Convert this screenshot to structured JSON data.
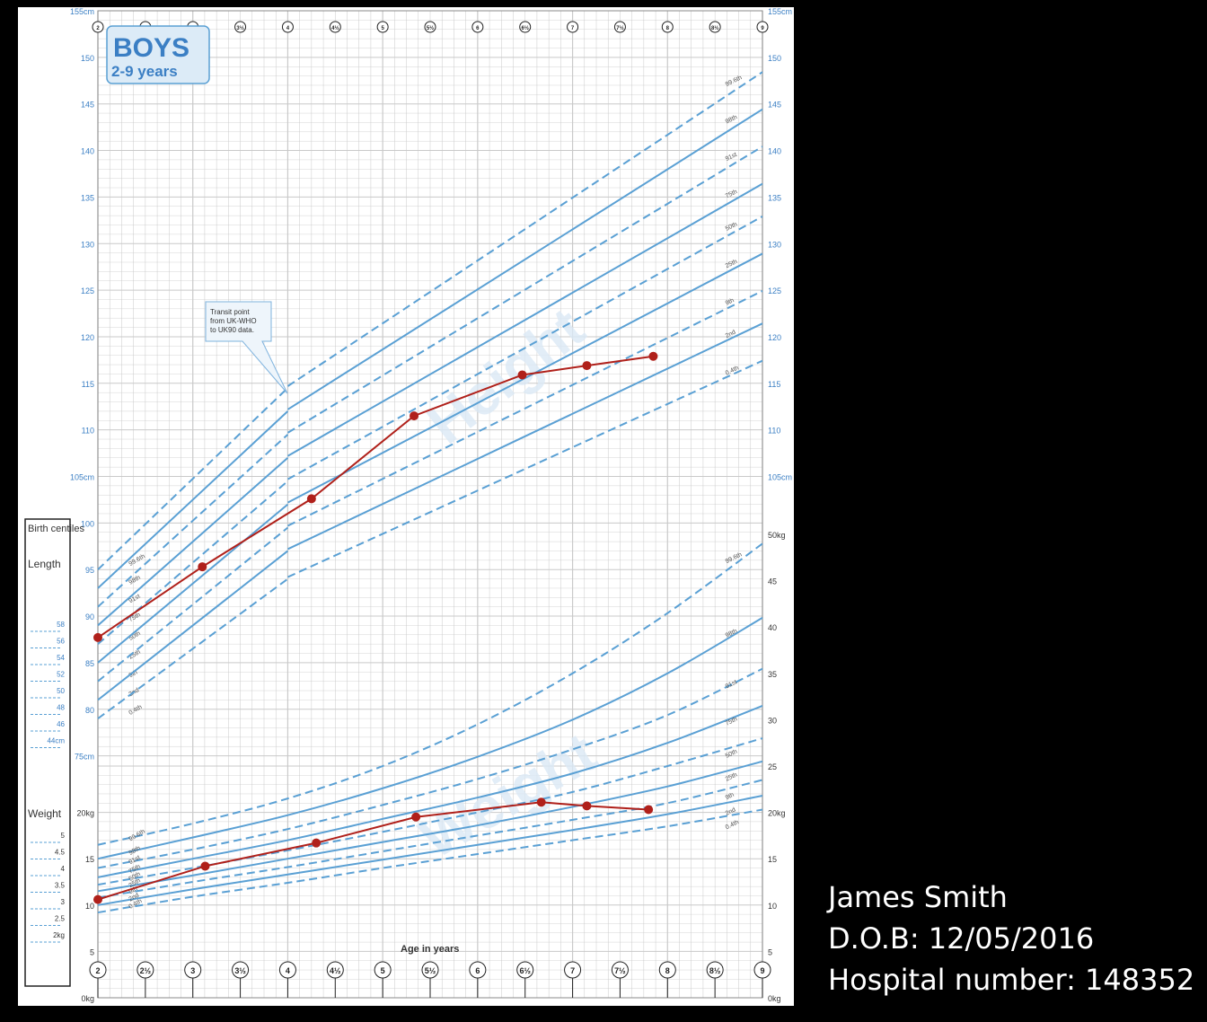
{
  "patient": {
    "name": "James Smith",
    "dob": "D.O.B: 12/05/2016",
    "hospital_number": "Hospital number: 148352"
  },
  "colors": {
    "chart_line": "#5aa0d4",
    "axis_text": "#3b7fc4",
    "patient_plot": "#b0201a",
    "background": "#000000"
  },
  "chart_data": {
    "type": "line",
    "title": "BOYS",
    "subtitle": "2-9 years",
    "xlabel": "Age in years",
    "x_ticks": [
      "2",
      "2½",
      "3",
      "3½",
      "4",
      "4½",
      "5",
      "5½",
      "6",
      "6½",
      "7",
      "7½",
      "8",
      "8½",
      "9"
    ],
    "xlim": [
      2,
      9
    ],
    "height_axis": {
      "ticks": [
        "155cm",
        "150",
        "145",
        "140",
        "135",
        "130",
        "125",
        "120",
        "115",
        "110",
        "105cm",
        "100",
        "95",
        "90",
        "85",
        "80",
        "75cm"
      ],
      "ylim": [
        75,
        155
      ],
      "unit": "cm"
    },
    "weight_axis": {
      "ticks": [
        "50kg",
        "45",
        "40",
        "35",
        "30",
        "25",
        "20kg",
        "15",
        "10",
        "5",
        "0kg"
      ],
      "ylim": [
        0,
        50
      ],
      "unit": "kg"
    },
    "centile_labels": [
      "99.6th",
      "98th",
      "91st",
      "75th",
      "50th",
      "25th",
      "9th",
      "2nd",
      "0.4th"
    ],
    "height_centiles": [
      {
        "name": "99.6th",
        "dashed": true,
        "x": [
          2,
          4,
          9
        ],
        "y": [
          95.0,
          114.5,
          149.0
        ]
      },
      {
        "name": "98th",
        "dashed": false,
        "x": [
          2,
          4,
          9
        ],
        "y": [
          93.0,
          112.0,
          145.0
        ]
      },
      {
        "name": "91st",
        "dashed": true,
        "x": [
          2,
          4,
          9
        ],
        "y": [
          91.0,
          109.5,
          141.0
        ]
      },
      {
        "name": "75th",
        "dashed": false,
        "x": [
          2,
          4,
          9
        ],
        "y": [
          89.0,
          107.0,
          137.0
        ]
      },
      {
        "name": "50th",
        "dashed": true,
        "x": [
          2,
          4,
          9
        ],
        "y": [
          87.0,
          104.5,
          133.5
        ]
      },
      {
        "name": "25th",
        "dashed": false,
        "x": [
          2,
          4,
          9
        ],
        "y": [
          85.0,
          102.0,
          129.5
        ]
      },
      {
        "name": "9th",
        "dashed": true,
        "x": [
          2,
          4,
          9
        ],
        "y": [
          83.0,
          99.5,
          125.5
        ]
      },
      {
        "name": "2nd",
        "dashed": false,
        "x": [
          2,
          4,
          9
        ],
        "y": [
          81.0,
          97.0,
          122.0
        ]
      },
      {
        "name": "0.4th",
        "dashed": true,
        "x": [
          2,
          4,
          9
        ],
        "y": [
          79.0,
          94.0,
          118.0
        ]
      }
    ],
    "weight_centiles": [
      {
        "name": "99.6th",
        "dashed": true,
        "x": [
          2,
          3,
          4,
          5,
          6,
          7,
          8,
          9
        ],
        "y": [
          16.5,
          18.8,
          21.5,
          25.0,
          29.5,
          35.0,
          41.5,
          49.0
        ]
      },
      {
        "name": "98th",
        "dashed": false,
        "x": [
          2,
          3,
          4,
          5,
          6,
          7,
          8,
          9
        ],
        "y": [
          15.0,
          17.3,
          19.7,
          22.6,
          26.0,
          30.0,
          35.0,
          41.0
        ]
      },
      {
        "name": "91st",
        "dashed": true,
        "x": [
          2,
          3,
          4,
          5,
          6,
          7,
          8,
          9
        ],
        "y": [
          14.0,
          16.0,
          18.2,
          20.8,
          23.6,
          26.8,
          30.5,
          35.5
        ]
      },
      {
        "name": "75th",
        "dashed": false,
        "x": [
          2,
          3,
          4,
          5,
          6,
          7,
          8,
          9
        ],
        "y": [
          13.0,
          15.0,
          17.0,
          19.3,
          21.6,
          24.2,
          27.5,
          31.5
        ]
      },
      {
        "name": "50th",
        "dashed": true,
        "x": [
          2,
          3,
          4,
          5,
          6,
          7,
          8,
          9
        ],
        "y": [
          12.2,
          14.0,
          15.9,
          17.9,
          20.0,
          22.2,
          25.0,
          28.0
        ]
      },
      {
        "name": "25th",
        "dashed": false,
        "x": [
          2,
          3,
          4,
          5,
          6,
          7,
          8,
          9
        ],
        "y": [
          11.5,
          13.2,
          15.0,
          16.8,
          18.6,
          20.6,
          22.8,
          25.5
        ]
      },
      {
        "name": "9th",
        "dashed": true,
        "x": [
          2,
          3,
          4,
          5,
          6,
          7,
          8,
          9
        ],
        "y": [
          10.8,
          12.5,
          14.1,
          15.8,
          17.5,
          19.2,
          21.0,
          23.5
        ]
      },
      {
        "name": "2nd",
        "dashed": false,
        "x": [
          2,
          3,
          4,
          5,
          6,
          7,
          8,
          9
        ],
        "y": [
          10.0,
          11.7,
          13.3,
          14.9,
          16.5,
          18.1,
          19.8,
          21.8
        ]
      },
      {
        "name": "0.4th",
        "dashed": true,
        "x": [
          2,
          3,
          4,
          5,
          6,
          7,
          8,
          9
        ],
        "y": [
          9.2,
          10.9,
          12.4,
          14.0,
          15.5,
          17.0,
          18.5,
          20.3
        ]
      }
    ],
    "patient_height": {
      "x": [
        2.0,
        3.1,
        4.25,
        5.33,
        6.47,
        7.15,
        7.85
      ],
      "y": [
        87.7,
        95.3,
        102.6,
        111.5,
        115.9,
        116.9,
        117.9
      ]
    },
    "patient_weight": {
      "x": [
        2.0,
        3.13,
        4.3,
        5.35,
        6.67,
        7.15,
        7.8
      ],
      "y": [
        10.6,
        14.2,
        16.7,
        19.5,
        21.1,
        20.7,
        20.3
      ]
    },
    "annotation": "Transit point from UK-WHO to UK90 data.",
    "watermarks": [
      "Height",
      "Weight"
    ],
    "birth_centiles": {
      "title": "Birth centiles",
      "length_label": "Length",
      "weight_label": "Weight",
      "length_ticks": [
        "58",
        "56",
        "54",
        "52",
        "50",
        "48",
        "46",
        "44cm"
      ],
      "weight_ticks": [
        "5",
        "4.5",
        "4",
        "3.5",
        "3",
        "2.5",
        "2kg"
      ]
    }
  }
}
